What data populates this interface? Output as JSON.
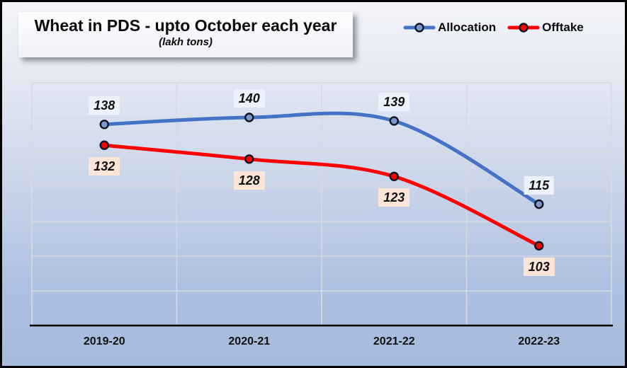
{
  "title": {
    "text": "Wheat in PDS - upto October each year",
    "subtitle": "(lakh tons)"
  },
  "legend": {
    "items": [
      {
        "label": "Allocation"
      },
      {
        "label": "Offtake"
      }
    ]
  },
  "chart_data": {
    "type": "line",
    "title": "Wheat in PDS - upto October each year",
    "subtitle": "(lakh tons)",
    "categories": [
      "2019-20",
      "2020-21",
      "2021-22",
      "2022-23"
    ],
    "series": [
      {
        "name": "Allocation",
        "values": [
          138,
          140,
          139,
          115
        ],
        "color": "#4472c4",
        "marker_fill": "#7e97cc",
        "label_bg": "#ecf2fb",
        "label_position": "above"
      },
      {
        "name": "Offtake",
        "values": [
          132,
          128,
          123,
          103
        ],
        "color": "#fe0000",
        "marker_fill": "#fe0000",
        "label_bg": "#fbe5d6",
        "label_position": "below"
      }
    ],
    "ylim": [
      80,
      150
    ],
    "gridline_step": 10,
    "grid": true,
    "y_axis_labels_visible": false,
    "smooth_lines": true,
    "data_labels_visible": true,
    "legend_position": "top-right"
  },
  "colors": {
    "gridline": "#d6d9e0",
    "axis_line": "#000000",
    "marker_outline": "#0d1422",
    "label_text": "#111111",
    "background_top": "#f3f4f9",
    "background_bottom": "#a6badd",
    "title_box_bg": "#f4f5f9",
    "border": "#000000"
  }
}
